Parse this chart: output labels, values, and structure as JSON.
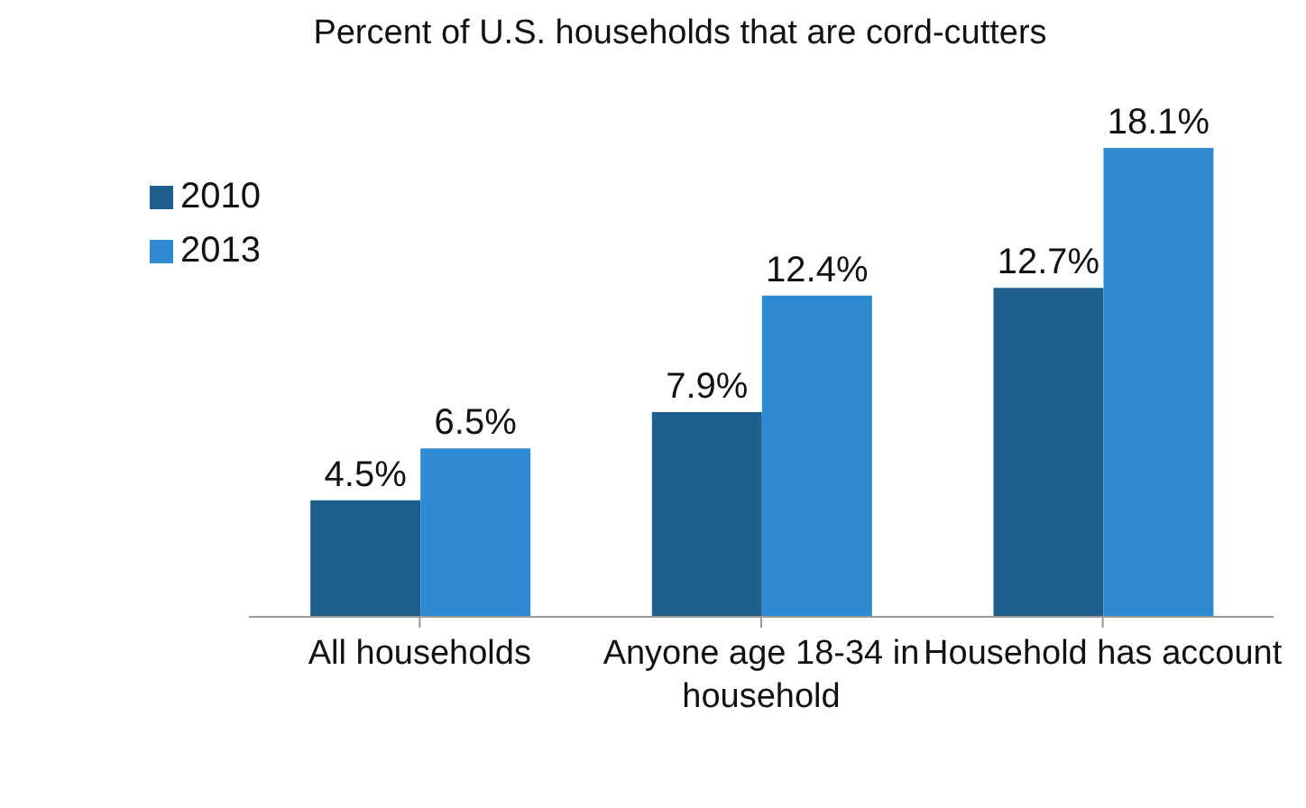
{
  "chart_data": {
    "type": "bar",
    "title": "Percent of U.S. households that are cord-cutters",
    "categories": [
      "All households",
      "Anyone age 18-34 in household",
      "Household has account"
    ],
    "series": [
      {
        "name": "2010",
        "color": "#1f5f8e",
        "values": [
          4.5,
          7.9,
          12.7
        ],
        "value_labels": [
          "4.5%",
          "7.9%",
          "12.7%"
        ]
      },
      {
        "name": "2013",
        "color": "#2e8ad3",
        "values": [
          6.5,
          12.4,
          18.1
        ],
        "value_labels": [
          "6.5%",
          "12.4%",
          "18.1%"
        ]
      }
    ],
    "legend": "top left",
    "grid": false
  }
}
